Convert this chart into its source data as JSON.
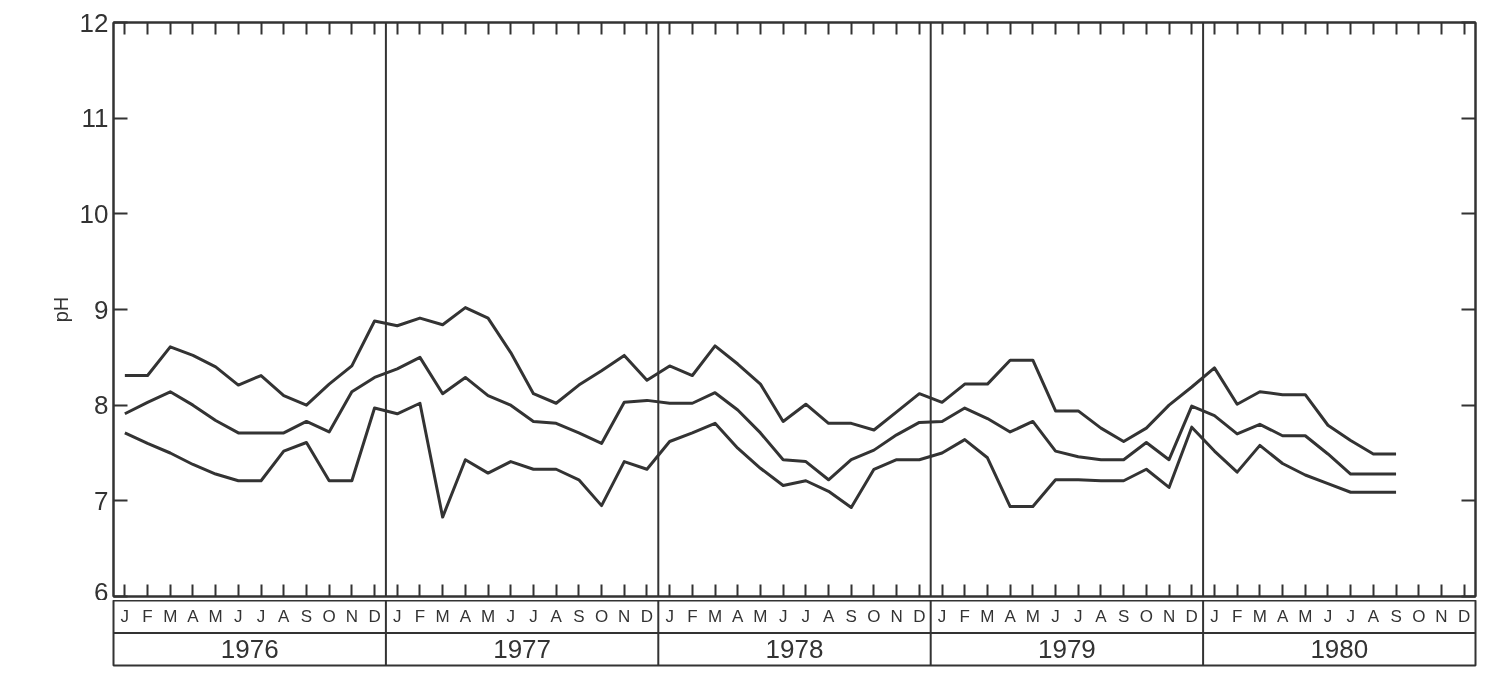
{
  "chart_data": {
    "type": "line",
    "ylabel": "pH",
    "categories": [
      "J",
      "F",
      "M",
      "A",
      "M",
      "J",
      "J",
      "A",
      "S",
      "O",
      "N",
      "D",
      "J",
      "F",
      "M",
      "A",
      "M",
      "J",
      "J",
      "A",
      "S",
      "O",
      "N",
      "D",
      "J",
      "F",
      "M",
      "A",
      "M",
      "J",
      "J",
      "A",
      "S",
      "O",
      "N",
      "D",
      "J",
      "F",
      "M",
      "A",
      "M",
      "J",
      "J",
      "A",
      "S",
      "O",
      "N",
      "D",
      "J",
      "F",
      "M",
      "A",
      "M",
      "J",
      "J",
      "A",
      "S",
      "O",
      "N",
      "D"
    ],
    "series": [
      {
        "color": "#333333",
        "values": [
          8.31,
          8.31,
          8.61,
          8.52,
          8.4,
          8.21,
          8.31,
          8.1,
          8.0,
          8.22,
          8.41,
          8.88,
          8.83,
          8.91,
          8.84,
          9.02,
          8.91,
          8.55,
          8.12,
          8.02,
          8.21,
          8.36,
          8.52,
          8.26,
          8.41,
          8.31,
          8.62,
          8.43,
          8.22,
          7.83,
          8.01,
          7.81,
          7.81,
          7.74,
          7.93,
          8.12,
          8.03,
          8.22,
          8.22,
          8.47,
          8.47,
          7.94,
          7.94,
          7.76,
          7.62,
          7.76,
          8.0,
          8.19,
          8.39,
          8.01,
          8.14,
          8.11,
          8.11,
          7.79,
          7.63,
          7.49,
          7.49,
          null,
          null,
          null
        ]
      },
      {
        "color": "#333333",
        "values": [
          7.91,
          8.03,
          8.14,
          8.0,
          7.84,
          7.71,
          7.71,
          7.71,
          7.83,
          7.72,
          8.14,
          8.29,
          8.38,
          8.5,
          8.12,
          8.29,
          8.1,
          8.0,
          7.83,
          7.81,
          7.71,
          7.6,
          8.03,
          8.05,
          8.02,
          8.02,
          8.13,
          7.95,
          7.71,
          7.43,
          7.41,
          7.22,
          7.43,
          7.53,
          7.69,
          7.82,
          7.83,
          7.97,
          7.86,
          7.72,
          7.83,
          7.52,
          7.46,
          7.43,
          7.43,
          7.61,
          7.43,
          7.99,
          7.89,
          7.7,
          7.8,
          7.68,
          7.68,
          7.49,
          7.28,
          7.28,
          7.28,
          null,
          null,
          null
        ]
      },
      {
        "color": "#333333",
        "values": [
          7.71,
          7.6,
          7.5,
          7.38,
          7.28,
          7.21,
          7.21,
          7.52,
          7.61,
          7.21,
          7.21,
          7.97,
          7.91,
          8.02,
          6.83,
          7.43,
          7.29,
          7.41,
          7.33,
          7.33,
          7.22,
          6.95,
          7.41,
          7.33,
          7.62,
          7.71,
          7.81,
          7.55,
          7.34,
          7.16,
          7.21,
          7.1,
          6.93,
          7.33,
          7.43,
          7.43,
          7.5,
          7.64,
          7.45,
          6.94,
          6.94,
          7.22,
          7.22,
          7.21,
          7.21,
          7.33,
          7.14,
          7.77,
          7.52,
          7.3,
          7.58,
          7.39,
          7.27,
          7.18,
          7.09,
          7.09,
          7.09,
          null,
          null,
          null
        ]
      }
    ],
    "ylim": [
      6,
      12
    ],
    "yticks": [
      6,
      7,
      8,
      9,
      10,
      11,
      12
    ],
    "annotations": [
      "1976",
      "1977",
      "1978",
      "1979",
      "1980"
    ]
  }
}
